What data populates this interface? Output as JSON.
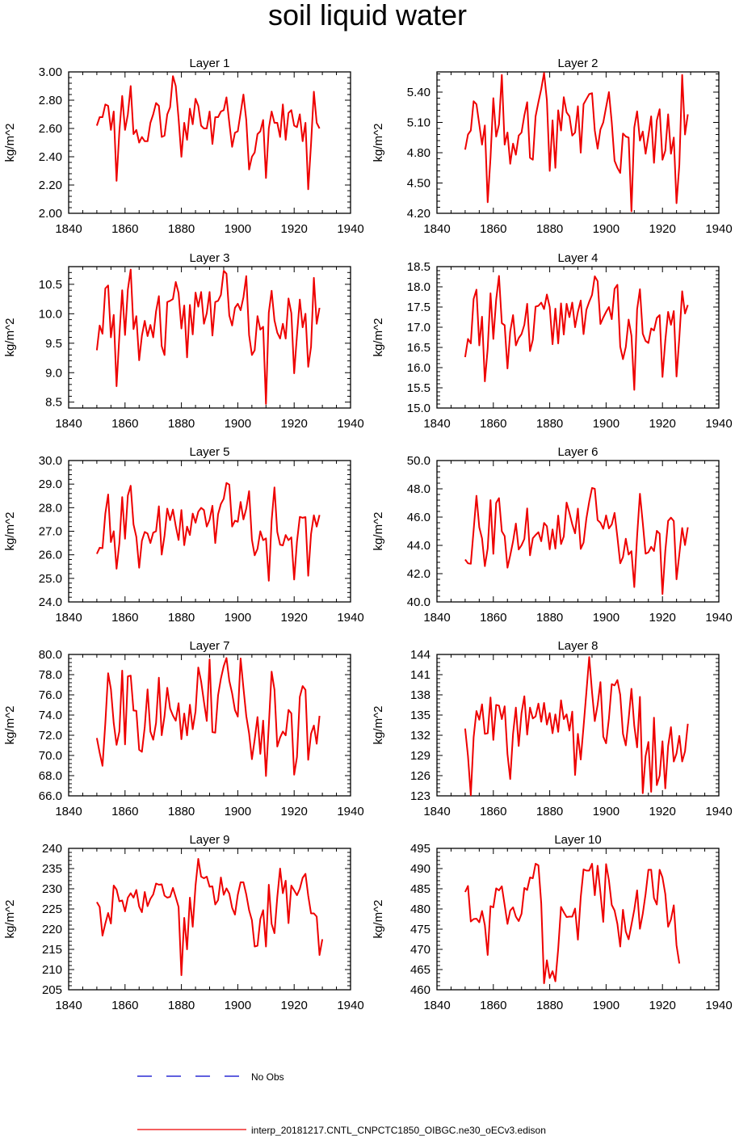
{
  "title": "soil liquid water",
  "colors": {
    "model_line": "#ee0000",
    "obs_line": "#0000cc",
    "axis": "#000000"
  },
  "legend": {
    "obs_label": "No Obs",
    "model_label": "interp_20181217.CNTL_CNPCTC1850_OIBGC.ne30_oECv3.edison"
  },
  "chart_data": [
    {
      "type": "line",
      "title": "Layer 1",
      "ylabel": "kg/m^2",
      "xlim": [
        1840,
        1940
      ],
      "xticks": [
        1840,
        1860,
        1880,
        1900,
        1920,
        1940
      ],
      "ylim": [
        2.0,
        3.0
      ],
      "yticks": [
        "2.00",
        "2.20",
        "2.40",
        "2.60",
        "2.80",
        "3.00"
      ],
      "x_start": 1850,
      "values": [
        2.62,
        2.68,
        2.68,
        2.77,
        2.76,
        2.59,
        2.72,
        2.23,
        2.58,
        2.83,
        2.59,
        2.7,
        2.9,
        2.56,
        2.59,
        2.5,
        2.54,
        2.51,
        2.51,
        2.64,
        2.7,
        2.78,
        2.76,
        2.54,
        2.55,
        2.7,
        2.75,
        2.97,
        2.9,
        2.67,
        2.4,
        2.64,
        2.52,
        2.74,
        2.63,
        2.81,
        2.76,
        2.62,
        2.6,
        2.6,
        2.72,
        2.49,
        2.68,
        2.68,
        2.72,
        2.73,
        2.82,
        2.64,
        2.47,
        2.57,
        2.58,
        2.71,
        2.84,
        2.66,
        2.31,
        2.4,
        2.43,
        2.56,
        2.58,
        2.66,
        2.25,
        2.6,
        2.72,
        2.64,
        2.64,
        2.54,
        2.77,
        2.52,
        2.71,
        2.73,
        2.62,
        2.61,
        2.7,
        2.51,
        2.64,
        2.17,
        2.49,
        2.86,
        2.64,
        2.6
      ]
    },
    {
      "type": "line",
      "title": "Layer 2",
      "ylabel": "kg/m^2",
      "xlim": [
        1840,
        1940
      ],
      "xticks": [
        1840,
        1860,
        1880,
        1900,
        1920,
        1940
      ],
      "ylim": [
        4.2,
        5.6
      ],
      "yticks": [
        "4.20",
        "4.50",
        "4.80",
        "5.10",
        "5.40"
      ],
      "x_start": 1850,
      "values": [
        4.83,
        4.98,
        5.02,
        5.31,
        5.28,
        5.08,
        4.88,
        5.07,
        4.31,
        4.75,
        5.34,
        4.96,
        5.08,
        5.57,
        4.88,
        5.0,
        4.69,
        4.89,
        4.78,
        4.97,
        5.0,
        5.17,
        5.3,
        4.75,
        4.73,
        5.16,
        5.3,
        5.43,
        5.59,
        5.32,
        4.62,
        5.12,
        4.65,
        5.22,
        5.02,
        5.35,
        5.2,
        5.16,
        4.97,
        5.0,
        5.26,
        4.8,
        5.28,
        5.33,
        5.38,
        5.39,
        5.02,
        4.84,
        5.03,
        5.1,
        5.25,
        5.4,
        5.1,
        4.72,
        4.65,
        4.6,
        4.99,
        4.96,
        4.95,
        4.22,
        5.05,
        5.21,
        4.92,
        5.01,
        4.79,
        4.97,
        5.16,
        4.7,
        5.12,
        5.23,
        4.73,
        4.82,
        5.18,
        4.79,
        4.95,
        4.3,
        4.68,
        5.57,
        4.98,
        5.18
      ]
    },
    {
      "type": "line",
      "title": "Layer 3",
      "ylabel": "kg/m^2",
      "xlim": [
        1840,
        1940
      ],
      "xticks": [
        1840,
        1860,
        1880,
        1900,
        1920,
        1940
      ],
      "ylim": [
        8.4,
        10.8
      ],
      "yticks": [
        "8.5",
        "9.0",
        "9.5",
        "10.0",
        "10.5"
      ],
      "x_start": 1850,
      "values": [
        9.38,
        9.8,
        9.66,
        10.43,
        10.48,
        9.6,
        9.98,
        8.77,
        9.63,
        10.4,
        9.64,
        10.41,
        10.75,
        9.74,
        9.96,
        9.21,
        9.63,
        9.88,
        9.62,
        9.81,
        9.6,
        10.04,
        10.3,
        9.45,
        9.3,
        10.2,
        10.22,
        10.25,
        10.54,
        10.35,
        9.75,
        10.14,
        9.26,
        10.15,
        9.65,
        10.36,
        10.12,
        10.37,
        9.83,
        10.01,
        10.37,
        9.63,
        10.2,
        10.22,
        10.32,
        10.73,
        10.68,
        9.97,
        9.8,
        10.1,
        10.17,
        10.06,
        10.28,
        10.64,
        9.64,
        9.3,
        9.38,
        9.96,
        9.73,
        9.78,
        8.47,
        10.02,
        10.39,
        9.89,
        9.68,
        9.58,
        9.83,
        9.58,
        10.26,
        10.01,
        8.99,
        9.64,
        10.24,
        9.77,
        10.0,
        9.1,
        9.44,
        10.61,
        9.83,
        10.1
      ]
    },
    {
      "type": "line",
      "title": "Layer 4",
      "ylabel": "kg/m^2",
      "xlim": [
        1840,
        1940
      ],
      "xticks": [
        1840,
        1860,
        1880,
        1900,
        1920,
        1940
      ],
      "ylim": [
        15.0,
        18.5
      ],
      "yticks": [
        "15.0",
        "15.5",
        "16.0",
        "16.5",
        "17.0",
        "17.5",
        "18.0",
        "18.5"
      ],
      "x_start": 1850,
      "values": [
        16.26,
        16.71,
        16.6,
        17.7,
        17.93,
        16.55,
        17.26,
        15.66,
        16.47,
        17.84,
        16.71,
        17.68,
        18.27,
        17.1,
        17.05,
        15.98,
        16.89,
        17.3,
        16.55,
        16.73,
        16.83,
        17.06,
        17.58,
        16.41,
        16.69,
        17.51,
        17.53,
        17.61,
        17.45,
        17.81,
        17.5,
        16.58,
        17.46,
        16.6,
        17.59,
        16.82,
        17.58,
        17.25,
        17.61,
        17.0,
        17.38,
        17.66,
        16.83,
        17.43,
        17.63,
        17.8,
        18.26,
        18.14,
        17.08,
        17.24,
        17.38,
        17.5,
        17.2,
        17.95,
        18.05,
        16.52,
        16.21,
        16.51,
        17.19,
        16.79,
        15.45,
        17.44,
        17.94,
        16.84,
        16.66,
        16.61,
        16.97,
        16.92,
        17.23,
        17.3,
        15.77,
        16.67,
        17.38,
        17.06,
        17.4,
        15.78,
        16.75,
        17.89,
        17.34,
        17.55
      ]
    },
    {
      "type": "line",
      "title": "Layer 5",
      "ylabel": "kg/m^2",
      "xlim": [
        1840,
        1940
      ],
      "xticks": [
        1840,
        1860,
        1880,
        1900,
        1920,
        1940
      ],
      "ylim": [
        24.0,
        30.0
      ],
      "yticks": [
        "24.0",
        "25.0",
        "26.0",
        "27.0",
        "28.0",
        "29.0",
        "30.0"
      ],
      "x_start": 1850,
      "values": [
        26.04,
        26.3,
        26.28,
        27.75,
        28.56,
        26.54,
        27.0,
        25.41,
        26.49,
        28.45,
        26.68,
        28.52,
        28.93,
        27.29,
        26.76,
        25.45,
        26.6,
        26.97,
        26.9,
        26.5,
        26.94,
        27.0,
        28.06,
        26.01,
        26.81,
        27.96,
        27.47,
        27.92,
        27.22,
        26.63,
        27.9,
        26.41,
        27.2,
        26.84,
        27.75,
        27.36,
        27.83,
        27.99,
        27.9,
        27.2,
        27.49,
        28.08,
        26.5,
        27.72,
        28.16,
        28.38,
        29.05,
        28.98,
        27.2,
        27.45,
        27.4,
        28.24,
        27.5,
        27.96,
        28.7,
        26.64,
        25.98,
        26.25,
        27.0,
        26.62,
        26.7,
        24.9,
        27.45,
        28.86,
        26.97,
        26.43,
        26.4,
        26.84,
        26.62,
        26.74,
        24.95,
        26.56,
        27.61,
        27.57,
        27.6,
        25.11,
        26.88,
        27.68,
        27.2,
        27.69
      ]
    },
    {
      "type": "line",
      "title": "Layer 6",
      "ylabel": "kg/m^2",
      "xlim": [
        1840,
        1940
      ],
      "xticks": [
        1840,
        1860,
        1880,
        1900,
        1920,
        1940
      ],
      "ylim": [
        40.0,
        50.0
      ],
      "yticks": [
        "40.0",
        "42.0",
        "44.0",
        "46.0",
        "48.0",
        "50.0"
      ],
      "x_start": 1850,
      "values": [
        43.0,
        42.73,
        42.7,
        45.08,
        47.51,
        45.28,
        44.49,
        42.53,
        43.78,
        47.2,
        43.4,
        47.0,
        47.34,
        45.0,
        44.66,
        42.42,
        43.29,
        44.28,
        45.54,
        43.71,
        44.01,
        44.46,
        46.61,
        43.3,
        44.51,
        44.73,
        44.93,
        44.29,
        45.59,
        45.35,
        43.72,
        45.13,
        43.77,
        46.11,
        44.09,
        44.63,
        47.03,
        46.31,
        45.49,
        44.85,
        46.6,
        43.75,
        44.2,
        45.9,
        47.09,
        48.06,
        48.0,
        45.79,
        45.6,
        45.18,
        46.12,
        45.2,
        45.48,
        46.3,
        44.58,
        42.73,
        43.17,
        44.47,
        43.35,
        43.59,
        41.05,
        44.66,
        47.65,
        45.6,
        43.41,
        43.51,
        43.9,
        43.6,
        45.03,
        44.83,
        40.56,
        43.6,
        45.73,
        45.96,
        45.72,
        41.6,
        43.38,
        45.23,
        44.02,
        45.28
      ]
    },
    {
      "type": "line",
      "title": "Layer 7",
      "ylabel": "kg/m^2",
      "xlim": [
        1840,
        1940
      ],
      "xticks": [
        1840,
        1860,
        1880,
        1900,
        1920,
        1940
      ],
      "ylim": [
        66.0,
        80.0
      ],
      "yticks": [
        "66.0",
        "68.0",
        "70.0",
        "72.0",
        "74.0",
        "76.0",
        "78.0",
        "80.0"
      ],
      "x_start": 1850,
      "values": [
        71.73,
        70.26,
        68.98,
        73.2,
        78.14,
        76.58,
        73.21,
        71.05,
        72.38,
        78.4,
        71.1,
        77.83,
        77.9,
        74.45,
        74.42,
        70.56,
        70.36,
        72.8,
        76.54,
        72.36,
        71.55,
        73.22,
        77.7,
        72.0,
        73.9,
        76.7,
        74.65,
        73.95,
        73.44,
        75.17,
        71.61,
        74.15,
        71.99,
        75.02,
        72.6,
        74.36,
        78.71,
        77.34,
        75.32,
        73.42,
        79.51,
        72.31,
        72.26,
        75.96,
        77.62,
        78.85,
        79.65,
        77.4,
        76.15,
        74.5,
        73.85,
        79.6,
        76.68,
        73.91,
        72.18,
        69.63,
        71.56,
        73.8,
        70.16,
        73.45,
        67.96,
        72.96,
        78.3,
        76.51,
        70.88,
        71.78,
        72.37,
        71.99,
        74.51,
        74.17,
        68.1,
        69.86,
        75.8,
        76.87,
        76.49,
        69.57,
        72.15,
        72.96,
        71.16,
        73.92
      ]
    },
    {
      "type": "line",
      "title": "Layer 8",
      "ylabel": "kg/m^2",
      "xlim": [
        1840,
        1940
      ],
      "xticks": [
        1840,
        1860,
        1880,
        1900,
        1920,
        1940
      ],
      "ylim": [
        123,
        144
      ],
      "yticks": [
        "123",
        "126",
        "129",
        "132",
        "135",
        "138",
        "141",
        "144"
      ],
      "x_start": 1850,
      "values": [
        133.0,
        128.9,
        123.1,
        131.7,
        135.6,
        134.3,
        136.6,
        132.2,
        132.3,
        137.6,
        131.3,
        136.5,
        136.4,
        134.4,
        136.3,
        129.2,
        125.5,
        132.2,
        136.1,
        130.4,
        135.3,
        137.8,
        132.1,
        136.1,
        134.5,
        134.8,
        136.7,
        134.0,
        136.8,
        133.6,
        135.3,
        132.3,
        135.1,
        132.5,
        137.2,
        134.4,
        135.1,
        132.7,
        135.5,
        126.1,
        132.2,
        128.4,
        133.3,
        138.4,
        143.6,
        138.4,
        134.1,
        136.5,
        139.9,
        131.8,
        130.8,
        134.5,
        139.6,
        139.4,
        140.2,
        138.0,
        132.2,
        130.5,
        134.4,
        138.9,
        133.4,
        130.2,
        137.7,
        123.4,
        128.9,
        131.0,
        123.6,
        134.6,
        124.6,
        126.0,
        131.1,
        124.1,
        130.4,
        133.2,
        128.1,
        129.3,
        131.9,
        128.1,
        129.6,
        133.7
      ]
    },
    {
      "type": "line",
      "title": "Layer 9",
      "ylabel": "kg/m^2",
      "xlim": [
        1840,
        1940
      ],
      "xticks": [
        1840,
        1860,
        1880,
        1900,
        1920,
        1940
      ],
      "ylim": [
        205,
        240
      ],
      "yticks": [
        "205",
        "210",
        "215",
        "220",
        "225",
        "230",
        "235",
        "240"
      ],
      "x_start": 1850,
      "values": [
        226.7,
        225.5,
        218.4,
        221.4,
        224.0,
        221.4,
        230.8,
        229.8,
        226.9,
        227.1,
        224.4,
        227.8,
        228.9,
        227.8,
        229.7,
        225.6,
        224.2,
        229.2,
        225.7,
        227.5,
        228.6,
        231.3,
        231.0,
        231.1,
        228.3,
        227.8,
        228.0,
        230.2,
        227.9,
        225.5,
        208.6,
        222.8,
        215.0,
        227.8,
        220.6,
        230.8,
        237.4,
        233.0,
        232.6,
        233.0,
        230.5,
        230.6,
        226.1,
        227.2,
        232.8,
        228.5,
        230.1,
        228.8,
        225.3,
        223.6,
        228.5,
        231.6,
        231.6,
        228.6,
        224.7,
        222.2,
        215.7,
        215.9,
        222.5,
        224.7,
        215.7,
        231.0,
        221.3,
        219.0,
        227.9,
        235.0,
        228.9,
        232.0,
        221.5,
        230.8,
        229.6,
        228.4,
        230.0,
        232.7,
        233.7,
        228.3,
        223.9,
        223.9,
        223.1,
        213.6,
        217.5
      ]
    },
    {
      "type": "line",
      "title": "Layer 10",
      "ylabel": "kg/m^2",
      "xlim": [
        1840,
        1940
      ],
      "xticks": [
        1840,
        1860,
        1880,
        1900,
        1920,
        1940
      ],
      "ylim": [
        460,
        495
      ],
      "yticks": [
        "460",
        "465",
        "470",
        "475",
        "480",
        "485",
        "490",
        "495"
      ],
      "x_start": 1850,
      "values": [
        484.2,
        485.7,
        476.9,
        477.5,
        477.6,
        476.7,
        479.5,
        476.0,
        468.6,
        480.7,
        480.4,
        485.1,
        484.6,
        485.6,
        481.0,
        476.3,
        479.6,
        480.4,
        478.1,
        477.0,
        478.8,
        485.2,
        484.7,
        487.8,
        487.6,
        491.2,
        490.8,
        481.4,
        461.6,
        467.3,
        462.9,
        464.6,
        462.1,
        470.1,
        480.5,
        479.2,
        478.0,
        478.1,
        478.1,
        480.1,
        472.4,
        482.9,
        489.8,
        489.5,
        489.5,
        491.2,
        483.4,
        490.7,
        484.0,
        476.8,
        491.1,
        487.1,
        481.0,
        479.6,
        476.3,
        470.7,
        479.8,
        474.4,
        472.5,
        476.1,
        479.8,
        484.6,
        475.1,
        478.8,
        483.7,
        489.7,
        489.7,
        482.7,
        481.1,
        489.7,
        487.8,
        483.7,
        475.6,
        477.4,
        480.9,
        471.0,
        466.5
      ]
    }
  ]
}
